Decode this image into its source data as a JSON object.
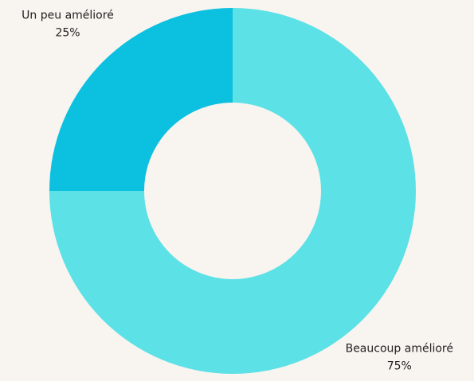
{
  "chart_data": {
    "type": "donut",
    "categories": [
      "Beaucoup amélioré",
      "Un peu amélioré"
    ],
    "values": [
      75,
      25
    ],
    "value_labels": [
      "75%",
      "25%"
    ],
    "colors": [
      "#5ce1e6",
      "#0cc0df"
    ]
  }
}
